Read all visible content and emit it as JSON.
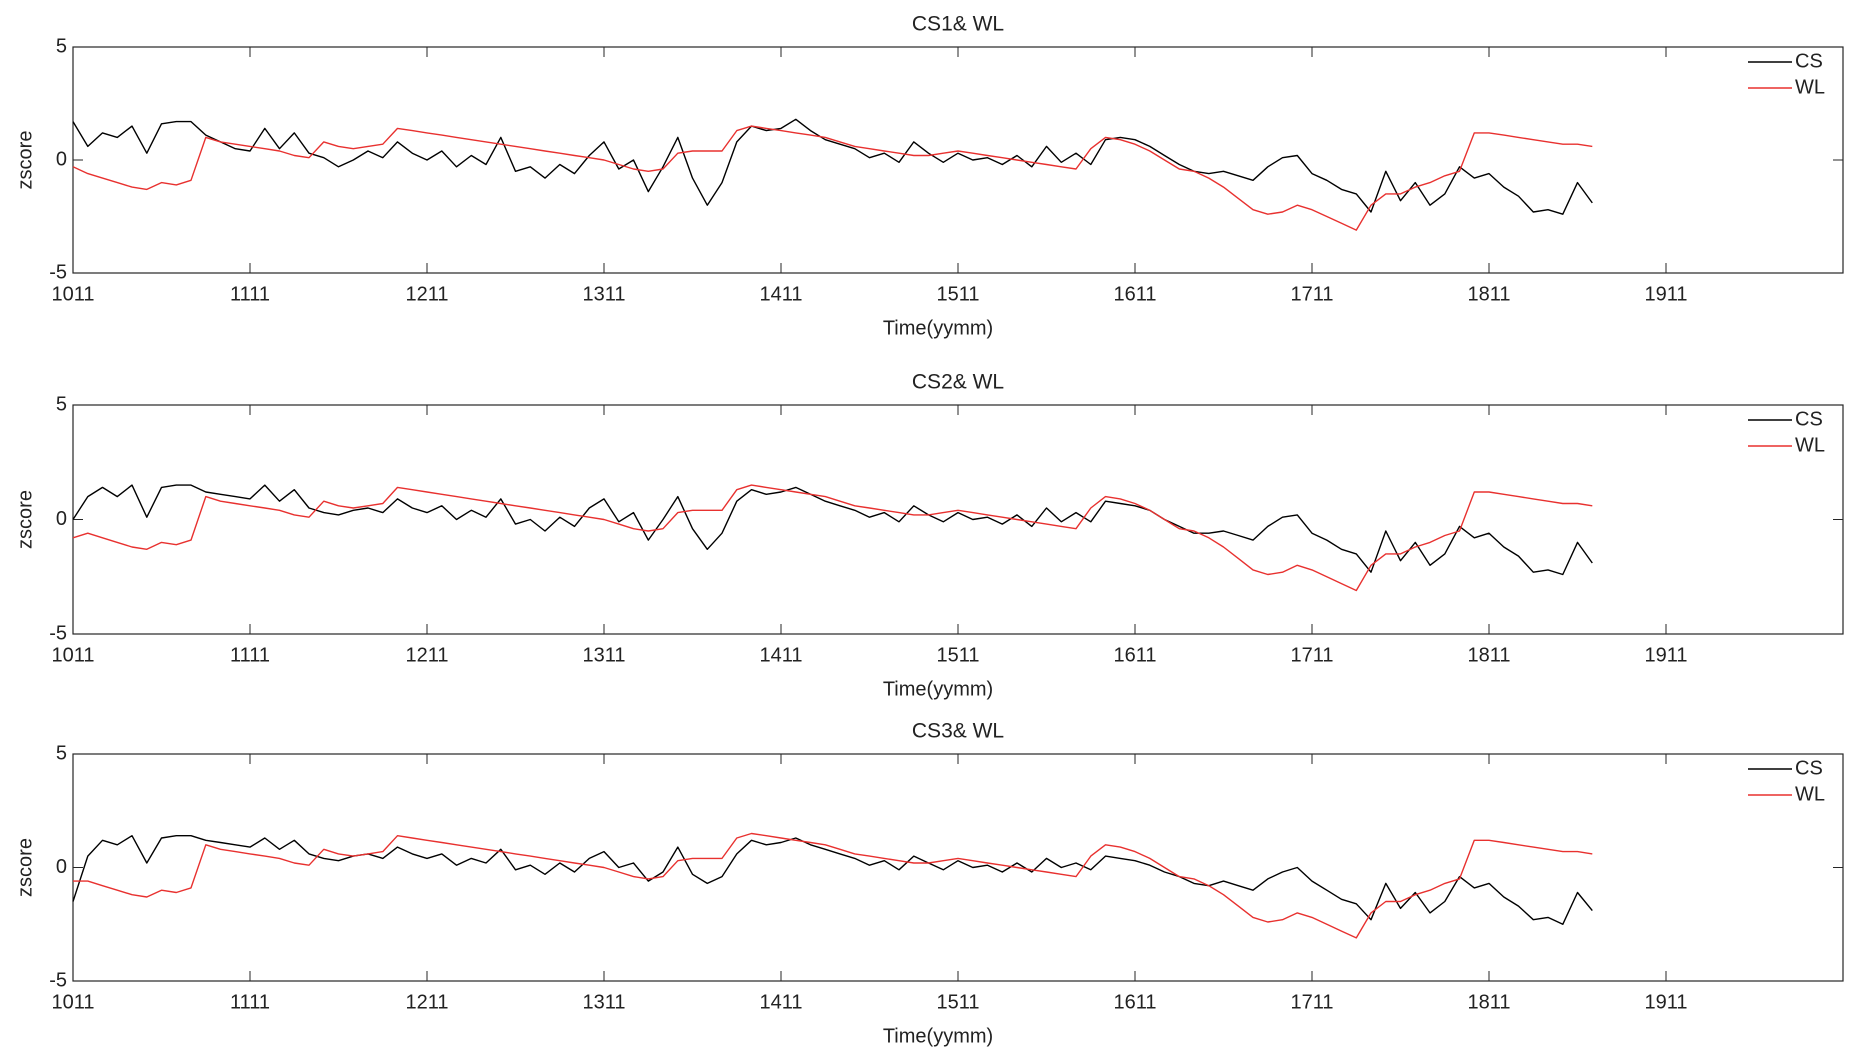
{
  "chart_data": [
    {
      "type": "line",
      "title": "CS1& WL",
      "xlabel": "Time(yymm)",
      "ylabel": "zscore",
      "x": [
        0,
        1,
        2,
        3,
        4,
        5,
        6,
        7,
        8,
        9,
        10,
        11,
        12,
        13,
        14,
        15,
        16,
        17,
        18,
        19,
        20,
        21,
        22,
        23,
        24,
        25,
        26,
        27,
        28,
        29,
        30,
        31,
        32,
        33,
        34,
        35,
        36,
        37,
        38,
        39,
        40,
        41,
        42,
        43,
        44,
        45,
        46,
        47,
        48,
        49,
        50,
        51,
        52,
        53,
        54,
        55,
        56,
        57,
        58,
        59,
        60,
        61,
        62,
        63,
        64,
        65,
        66,
        67,
        68,
        69,
        70,
        71,
        72,
        73,
        74,
        75,
        76,
        77,
        78,
        79,
        80,
        81,
        82,
        83,
        84,
        85,
        86,
        87,
        88,
        89,
        90,
        91,
        92,
        93,
        94,
        95,
        96,
        97,
        98,
        99,
        100,
        101,
        102,
        103
      ],
      "series": [
        {
          "name": "CS",
          "color": "#000000",
          "values": [
            1.7,
            0.6,
            1.2,
            1.0,
            1.5,
            0.3,
            1.6,
            1.7,
            1.7,
            1.1,
            0.8,
            0.5,
            0.4,
            1.4,
            0.5,
            1.2,
            0.3,
            0.1,
            -0.3,
            0.0,
            0.4,
            0.1,
            0.8,
            0.3,
            0.0,
            0.4,
            -0.3,
            0.2,
            -0.2,
            1.0,
            -0.5,
            -0.3,
            -0.8,
            -0.2,
            -0.6,
            0.2,
            0.8,
            -0.4,
            0.0,
            -1.4,
            -0.3,
            1.0,
            -0.8,
            -2.0,
            -1.0,
            0.8,
            1.5,
            1.3,
            1.4,
            1.8,
            1.3,
            0.9,
            0.7,
            0.5,
            0.1,
            0.3,
            -0.1,
            0.8,
            0.3,
            -0.1,
            0.3,
            0.0,
            0.1,
            -0.2,
            0.2,
            -0.3,
            0.6,
            -0.1,
            0.3,
            -0.2,
            0.9,
            1.0,
            0.9,
            0.6,
            0.2,
            -0.2,
            -0.5,
            -0.6,
            -0.5,
            -0.7,
            -0.9,
            -0.3,
            0.1,
            0.2,
            -0.6,
            -0.9,
            -1.3,
            -1.5,
            -2.3,
            -0.5,
            -1.8,
            -1.0,
            -2.0,
            -1.5,
            -0.3,
            -0.8,
            -0.6,
            -1.2,
            -1.6,
            -2.3,
            -2.2,
            -2.4,
            -1.0,
            -1.9
          ]
        },
        {
          "name": "WL",
          "color": "#e8312f",
          "values": [
            -0.3,
            -0.6,
            -0.8,
            -1.0,
            -1.2,
            -1.3,
            -1.0,
            -1.1,
            -0.9,
            1.0,
            0.8,
            0.7,
            0.6,
            0.5,
            0.4,
            0.2,
            0.1,
            0.8,
            0.6,
            0.5,
            0.6,
            0.7,
            1.4,
            1.3,
            1.2,
            1.1,
            1.0,
            0.9,
            0.8,
            0.7,
            0.6,
            0.5,
            0.4,
            0.3,
            0.2,
            0.1,
            0.0,
            -0.2,
            -0.4,
            -0.5,
            -0.4,
            0.3,
            0.4,
            0.4,
            0.4,
            1.3,
            1.5,
            1.4,
            1.3,
            1.2,
            1.1,
            1.0,
            0.8,
            0.6,
            0.5,
            0.4,
            0.3,
            0.2,
            0.2,
            0.3,
            0.4,
            0.3,
            0.2,
            0.1,
            0.0,
            -0.1,
            -0.2,
            -0.3,
            -0.4,
            0.5,
            1.0,
            0.9,
            0.7,
            0.4,
            0.0,
            -0.4,
            -0.5,
            -0.8,
            -1.2,
            -1.7,
            -2.2,
            -2.4,
            -2.3,
            -2.0,
            -2.2,
            -2.5,
            -2.8,
            -3.1,
            -2.0,
            -1.5,
            -1.5,
            -1.2,
            -1.0,
            -0.7,
            -0.5,
            1.2,
            1.2,
            1.1,
            1.0,
            0.9,
            0.8,
            0.7,
            0.7,
            0.6
          ]
        }
      ],
      "xlim": [
        0,
        120
      ],
      "xticks": [
        {
          "value": 0,
          "label": "1011"
        },
        {
          "value": 12,
          "label": "1111"
        },
        {
          "value": 24,
          "label": "1211"
        },
        {
          "value": 36,
          "label": "1311"
        },
        {
          "value": 48,
          "label": "1411"
        },
        {
          "value": 60,
          "label": "1511"
        },
        {
          "value": 72,
          "label": "1611"
        },
        {
          "value": 84,
          "label": "1711"
        },
        {
          "value": 96,
          "label": "1811"
        },
        {
          "value": 108,
          "label": "1911"
        }
      ],
      "ylim": [
        -5,
        5
      ],
      "yticks": [
        -5,
        0,
        5
      ],
      "legend": "upper right"
    },
    {
      "type": "line",
      "title": "CS2& WL",
      "xlabel": "Time(yymm)",
      "ylabel": "zscore",
      "x": [
        0,
        1,
        2,
        3,
        4,
        5,
        6,
        7,
        8,
        9,
        10,
        11,
        12,
        13,
        14,
        15,
        16,
        17,
        18,
        19,
        20,
        21,
        22,
        23,
        24,
        25,
        26,
        27,
        28,
        29,
        30,
        31,
        32,
        33,
        34,
        35,
        36,
        37,
        38,
        39,
        40,
        41,
        42,
        43,
        44,
        45,
        46,
        47,
        48,
        49,
        50,
        51,
        52,
        53,
        54,
        55,
        56,
        57,
        58,
        59,
        60,
        61,
        62,
        63,
        64,
        65,
        66,
        67,
        68,
        69,
        70,
        71,
        72,
        73,
        74,
        75,
        76,
        77,
        78,
        79,
        80,
        81,
        82,
        83,
        84,
        85,
        86,
        87,
        88,
        89,
        90,
        91,
        92,
        93,
        94,
        95,
        96,
        97,
        98,
        99,
        100,
        101,
        102,
        103
      ],
      "series": [
        {
          "name": "CS",
          "color": "#000000",
          "values": [
            0.0,
            1.0,
            1.4,
            1.0,
            1.5,
            0.1,
            1.4,
            1.5,
            1.5,
            1.2,
            1.1,
            1.0,
            0.9,
            1.5,
            0.8,
            1.3,
            0.5,
            0.3,
            0.2,
            0.4,
            0.5,
            0.3,
            0.9,
            0.5,
            0.3,
            0.6,
            0.0,
            0.4,
            0.1,
            0.9,
            -0.2,
            0.0,
            -0.5,
            0.1,
            -0.3,
            0.5,
            0.9,
            -0.1,
            0.3,
            -0.9,
            0.0,
            1.0,
            -0.4,
            -1.3,
            -0.6,
            0.8,
            1.3,
            1.1,
            1.2,
            1.4,
            1.1,
            0.8,
            0.6,
            0.4,
            0.1,
            0.3,
            -0.1,
            0.6,
            0.2,
            -0.1,
            0.3,
            0.0,
            0.1,
            -0.2,
            0.2,
            -0.3,
            0.5,
            -0.1,
            0.3,
            -0.1,
            0.8,
            0.7,
            0.6,
            0.4,
            0.0,
            -0.3,
            -0.6,
            -0.6,
            -0.5,
            -0.7,
            -0.9,
            -0.3,
            0.1,
            0.2,
            -0.6,
            -0.9,
            -1.3,
            -1.5,
            -2.3,
            -0.5,
            -1.8,
            -1.0,
            -2.0,
            -1.5,
            -0.3,
            -0.8,
            -0.6,
            -1.2,
            -1.6,
            -2.3,
            -2.2,
            -2.4,
            -1.0,
            -1.9
          ]
        },
        {
          "name": "WL",
          "color": "#e8312f",
          "values": [
            -0.8,
            -0.6,
            -0.8,
            -1.0,
            -1.2,
            -1.3,
            -1.0,
            -1.1,
            -0.9,
            1.0,
            0.8,
            0.7,
            0.6,
            0.5,
            0.4,
            0.2,
            0.1,
            0.8,
            0.6,
            0.5,
            0.6,
            0.7,
            1.4,
            1.3,
            1.2,
            1.1,
            1.0,
            0.9,
            0.8,
            0.7,
            0.6,
            0.5,
            0.4,
            0.3,
            0.2,
            0.1,
            0.0,
            -0.2,
            -0.4,
            -0.5,
            -0.4,
            0.3,
            0.4,
            0.4,
            0.4,
            1.3,
            1.5,
            1.4,
            1.3,
            1.2,
            1.1,
            1.0,
            0.8,
            0.6,
            0.5,
            0.4,
            0.3,
            0.2,
            0.2,
            0.3,
            0.4,
            0.3,
            0.2,
            0.1,
            0.0,
            -0.1,
            -0.2,
            -0.3,
            -0.4,
            0.5,
            1.0,
            0.9,
            0.7,
            0.4,
            0.0,
            -0.4,
            -0.5,
            -0.8,
            -1.2,
            -1.7,
            -2.2,
            -2.4,
            -2.3,
            -2.0,
            -2.2,
            -2.5,
            -2.8,
            -3.1,
            -2.0,
            -1.5,
            -1.5,
            -1.2,
            -1.0,
            -0.7,
            -0.5,
            1.2,
            1.2,
            1.1,
            1.0,
            0.9,
            0.8,
            0.7,
            0.7,
            0.6
          ]
        }
      ],
      "xlim": [
        0,
        120
      ],
      "xticks": [
        {
          "value": 0,
          "label": "1011"
        },
        {
          "value": 12,
          "label": "1111"
        },
        {
          "value": 24,
          "label": "1211"
        },
        {
          "value": 36,
          "label": "1311"
        },
        {
          "value": 48,
          "label": "1411"
        },
        {
          "value": 60,
          "label": "1511"
        },
        {
          "value": 72,
          "label": "1611"
        },
        {
          "value": 84,
          "label": "1711"
        },
        {
          "value": 96,
          "label": "1811"
        },
        {
          "value": 108,
          "label": "1911"
        }
      ],
      "ylim": [
        -5,
        5
      ],
      "yticks": [
        -5,
        0,
        5
      ],
      "legend": "upper right"
    },
    {
      "type": "line",
      "title": "CS3& WL",
      "xlabel": "Time(yymm)",
      "ylabel": "zscore",
      "x": [
        0,
        1,
        2,
        3,
        4,
        5,
        6,
        7,
        8,
        9,
        10,
        11,
        12,
        13,
        14,
        15,
        16,
        17,
        18,
        19,
        20,
        21,
        22,
        23,
        24,
        25,
        26,
        27,
        28,
        29,
        30,
        31,
        32,
        33,
        34,
        35,
        36,
        37,
        38,
        39,
        40,
        41,
        42,
        43,
        44,
        45,
        46,
        47,
        48,
        49,
        50,
        51,
        52,
        53,
        54,
        55,
        56,
        57,
        58,
        59,
        60,
        61,
        62,
        63,
        64,
        65,
        66,
        67,
        68,
        69,
        70,
        71,
        72,
        73,
        74,
        75,
        76,
        77,
        78,
        79,
        80,
        81,
        82,
        83,
        84,
        85,
        86,
        87,
        88,
        89,
        90,
        91,
        92,
        93,
        94,
        95,
        96,
        97,
        98,
        99,
        100,
        101,
        102,
        103
      ],
      "series": [
        {
          "name": "CS",
          "color": "#000000",
          "values": [
            -1.5,
            0.5,
            1.2,
            1.0,
            1.4,
            0.2,
            1.3,
            1.4,
            1.4,
            1.2,
            1.1,
            1.0,
            0.9,
            1.3,
            0.8,
            1.2,
            0.6,
            0.4,
            0.3,
            0.5,
            0.6,
            0.4,
            0.9,
            0.6,
            0.4,
            0.6,
            0.1,
            0.4,
            0.2,
            0.8,
            -0.1,
            0.1,
            -0.3,
            0.2,
            -0.2,
            0.4,
            0.7,
            0.0,
            0.2,
            -0.6,
            -0.2,
            0.9,
            -0.3,
            -0.7,
            -0.4,
            0.6,
            1.2,
            1.0,
            1.1,
            1.3,
            1.0,
            0.8,
            0.6,
            0.4,
            0.1,
            0.3,
            -0.1,
            0.5,
            0.2,
            -0.1,
            0.3,
            0.0,
            0.1,
            -0.2,
            0.2,
            -0.2,
            0.4,
            0.0,
            0.2,
            -0.1,
            0.5,
            0.4,
            0.3,
            0.1,
            -0.2,
            -0.4,
            -0.7,
            -0.8,
            -0.6,
            -0.8,
            -1.0,
            -0.5,
            -0.2,
            0.0,
            -0.6,
            -1.0,
            -1.4,
            -1.6,
            -2.3,
            -0.7,
            -1.8,
            -1.1,
            -2.0,
            -1.5,
            -0.4,
            -0.9,
            -0.7,
            -1.3,
            -1.7,
            -2.3,
            -2.2,
            -2.5,
            -1.1,
            -1.9
          ]
        },
        {
          "name": "WL",
          "color": "#e8312f",
          "values": [
            -0.6,
            -0.6,
            -0.8,
            -1.0,
            -1.2,
            -1.3,
            -1.0,
            -1.1,
            -0.9,
            1.0,
            0.8,
            0.7,
            0.6,
            0.5,
            0.4,
            0.2,
            0.1,
            0.8,
            0.6,
            0.5,
            0.6,
            0.7,
            1.4,
            1.3,
            1.2,
            1.1,
            1.0,
            0.9,
            0.8,
            0.7,
            0.6,
            0.5,
            0.4,
            0.3,
            0.2,
            0.1,
            0.0,
            -0.2,
            -0.4,
            -0.5,
            -0.4,
            0.3,
            0.4,
            0.4,
            0.4,
            1.3,
            1.5,
            1.4,
            1.3,
            1.2,
            1.1,
            1.0,
            0.8,
            0.6,
            0.5,
            0.4,
            0.3,
            0.2,
            0.2,
            0.3,
            0.4,
            0.3,
            0.2,
            0.1,
            0.0,
            -0.1,
            -0.2,
            -0.3,
            -0.4,
            0.5,
            1.0,
            0.9,
            0.7,
            0.4,
            0.0,
            -0.4,
            -0.5,
            -0.8,
            -1.2,
            -1.7,
            -2.2,
            -2.4,
            -2.3,
            -2.0,
            -2.2,
            -2.5,
            -2.8,
            -3.1,
            -2.0,
            -1.5,
            -1.5,
            -1.2,
            -1.0,
            -0.7,
            -0.5,
            1.2,
            1.2,
            1.1,
            1.0,
            0.9,
            0.8,
            0.7,
            0.7,
            0.6
          ]
        }
      ],
      "xlim": [
        0,
        120
      ],
      "xticks": [
        {
          "value": 0,
          "label": "1011"
        },
        {
          "value": 12,
          "label": "1111"
        },
        {
          "value": 24,
          "label": "1211"
        },
        {
          "value": 36,
          "label": "1311"
        },
        {
          "value": 48,
          "label": "1411"
        },
        {
          "value": 60,
          "label": "1511"
        },
        {
          "value": 72,
          "label": "1611"
        },
        {
          "value": 84,
          "label": "1711"
        },
        {
          "value": 96,
          "label": "1811"
        },
        {
          "value": 108,
          "label": "1911"
        }
      ],
      "ylim": [
        -5,
        5
      ],
      "yticks": [
        -5,
        0,
        5
      ],
      "legend": "upper right"
    }
  ]
}
